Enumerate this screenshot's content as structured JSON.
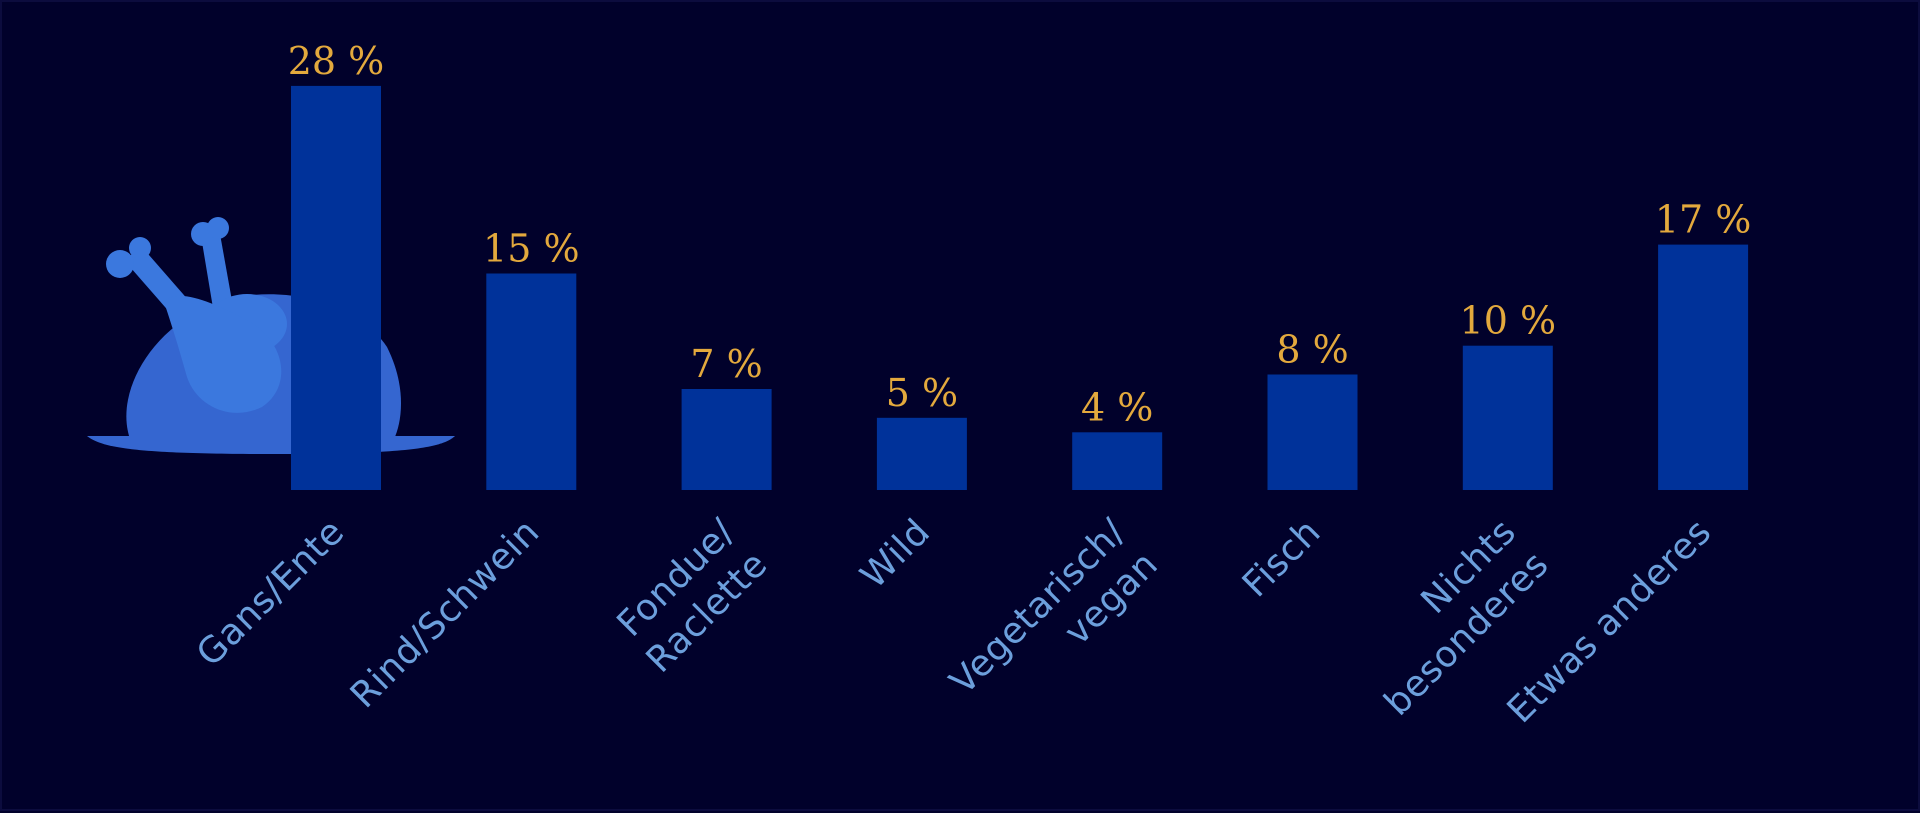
{
  "chart_data": {
    "type": "bar",
    "title": "",
    "xlabel": "",
    "ylabel": "",
    "categories": [
      [
        "Gans/Ente"
      ],
      [
        "Rind/Schwein"
      ],
      [
        "Fondue/",
        "Raclette"
      ],
      [
        "Wild"
      ],
      [
        "Vegetarisch/",
        "vegan"
      ],
      [
        "Fisch"
      ],
      [
        "Nichts",
        "besonderes"
      ],
      [
        "Etwas anderes"
      ]
    ],
    "values": [
      28,
      15,
      7,
      5,
      4,
      8,
      10,
      17
    ],
    "value_labels": [
      "28 %",
      "15 %",
      "7 %",
      "5 %",
      "4 %",
      "8 %",
      "10 %",
      "17 %"
    ],
    "unit": "%",
    "ylim": [
      0,
      30
    ],
    "grid": false,
    "legend": "none",
    "icon": "roast-poultry-icon",
    "colors": {
      "background": "#01012b",
      "bar": "#00329a",
      "value_label": "#e3a93d",
      "category_label": "#6c9fdc",
      "icon_main": "#3566d0",
      "icon_light": "#3b78de"
    }
  }
}
